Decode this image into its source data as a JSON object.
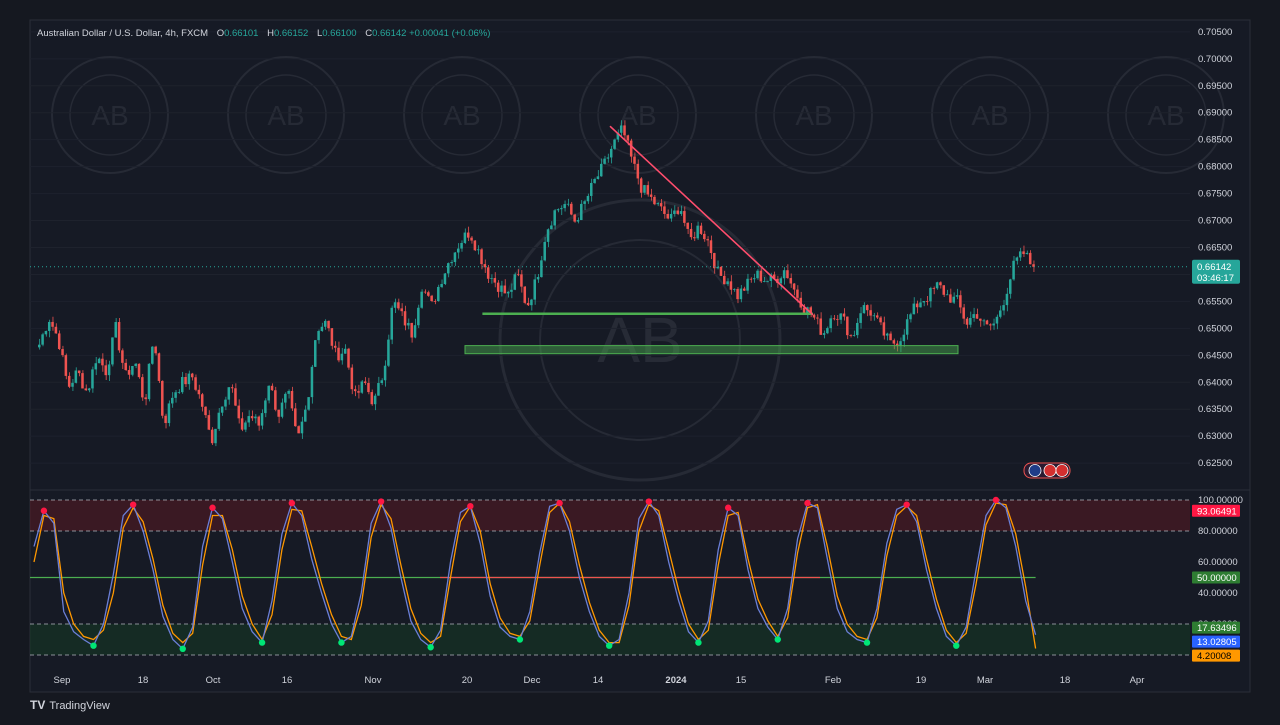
{
  "legend": {
    "symbol": "Australian Dollar / U.S. Dollar, 4h, FXCM",
    "o_label": "O",
    "o": "0.66101",
    "h_label": "H",
    "h": "0.66152",
    "l_label": "L",
    "l": "0.66100",
    "c_label": "C",
    "c": "0.66142",
    "change": "+0.00041 (+0.06%)"
  },
  "price_tag": {
    "value": "0.66142",
    "countdown": "03:46:17"
  },
  "watermark_text": "AB",
  "footer": {
    "brand": "TradingView",
    "logo": "TV"
  },
  "colors": {
    "up": "#26a69a",
    "down": "#ef5350",
    "line": "#ff4d6d",
    "zone": "#4caf50",
    "osc": "#6b7fd7",
    "signal": "#ff9800"
  },
  "chart_data": [
    {
      "type": "candlestick",
      "title": "Australian Dollar / U.S. Dollar, 4h, FXCM",
      "y_ticks": [
        "0.70500",
        "0.70000",
        "0.69500",
        "0.69000",
        "0.68500",
        "0.68000",
        "0.67500",
        "0.67000",
        "0.66500",
        "0.66000",
        "0.65500",
        "0.65000",
        "0.64500",
        "0.64000",
        "0.63500",
        "0.63000",
        "0.62500"
      ],
      "ylim": [
        0.6215,
        0.7072
      ],
      "x_labels": [
        "Sep",
        "18",
        "Oct",
        "16",
        "Nov",
        "20",
        "Dec",
        "14",
        "2024",
        "15",
        "Feb",
        "19",
        "Mar",
        "18",
        "Apr"
      ],
      "close_path": [
        0.647,
        0.652,
        0.648,
        0.639,
        0.642,
        0.638,
        0.645,
        0.642,
        0.65,
        0.641,
        0.644,
        0.636,
        0.649,
        0.632,
        0.638,
        0.64,
        0.641,
        0.636,
        0.629,
        0.636,
        0.64,
        0.631,
        0.634,
        0.632,
        0.64,
        0.634,
        0.638,
        0.629,
        0.636,
        0.65,
        0.651,
        0.645,
        0.646,
        0.637,
        0.64,
        0.636,
        0.642,
        0.655,
        0.652,
        0.649,
        0.658,
        0.654,
        0.659,
        0.663,
        0.666,
        0.668,
        0.664,
        0.66,
        0.658,
        0.656,
        0.66,
        0.654,
        0.659,
        0.668,
        0.672,
        0.673,
        0.67,
        0.673,
        0.677,
        0.68,
        0.684,
        0.687,
        0.681,
        0.676,
        0.674,
        0.672,
        0.67,
        0.673,
        0.666,
        0.669,
        0.666,
        0.66,
        0.659,
        0.656,
        0.658,
        0.66,
        0.659,
        0.659,
        0.661,
        0.657,
        0.654,
        0.652,
        0.649,
        0.653,
        0.652,
        0.648,
        0.654,
        0.653,
        0.65,
        0.647,
        0.648,
        0.652,
        0.655,
        0.656,
        0.658,
        0.656,
        0.655,
        0.651,
        0.653,
        0.65,
        0.651,
        0.656,
        0.662,
        0.664,
        0.661
      ],
      "last_price": 0.66142,
      "annotations": {
        "trendline": [
          [
            0.5,
            0.6875
          ],
          [
            0.675,
            0.6525
          ]
        ],
        "support_line_upper": {
          "x": [
            0.39,
            0.675
          ],
          "y": 0.6527
        },
        "support_zone": {
          "x": [
            0.375,
            0.8
          ],
          "y": [
            0.6453,
            0.6468
          ]
        }
      }
    },
    {
      "type": "line",
      "title": "",
      "y_ticks": [
        "100.00000",
        "80.00000",
        "60.00000",
        "40.00000",
        "20.00000"
      ],
      "ylim": [
        0,
        100
      ],
      "levels": [
        100,
        80,
        50,
        20,
        0
      ],
      "series": [
        {
          "values": [
            70,
            93.06,
            85,
            28,
            15,
            10,
            6,
            20,
            52,
            90,
            97,
            80,
            55,
            25,
            10,
            4,
            18,
            70,
            95,
            88,
            60,
            30,
            15,
            8,
            35,
            78,
            98,
            90,
            62,
            40,
            20,
            8,
            12,
            40,
            85,
            99,
            82,
            50,
            22,
            10,
            5,
            16,
            60,
            92,
            96,
            72,
            38,
            18,
            12,
            10,
            28,
            66,
            96,
            98,
            80,
            50,
            28,
            12,
            6,
            10,
            40,
            88,
            99,
            90,
            60,
            35,
            15,
            8,
            22,
            68,
            95,
            90,
            55,
            30,
            18,
            10,
            30,
            75,
            98,
            95,
            62,
            30,
            15,
            10,
            8,
            30,
            72,
            94,
            97,
            86,
            55,
            30,
            12,
            6,
            18,
            55,
            90,
            100,
            95,
            70,
            35,
            13.03
          ]
        },
        {
          "values": [
            60,
            90,
            88,
            40,
            20,
            12,
            10,
            16,
            40,
            82,
            95,
            86,
            62,
            32,
            14,
            8,
            14,
            58,
            90,
            90,
            68,
            38,
            20,
            10,
            26,
            68,
            94,
            93,
            70,
            46,
            26,
            12,
            10,
            32,
            76,
            97,
            88,
            58,
            30,
            14,
            8,
            12,
            50,
            86,
            96,
            80,
            46,
            24,
            14,
            12,
            22,
            58,
            92,
            98,
            86,
            58,
            34,
            16,
            8,
            8,
            32,
            80,
            97,
            93,
            68,
            42,
            20,
            10,
            16,
            58,
            90,
            92,
            62,
            36,
            22,
            12,
            24,
            66,
            95,
            97,
            70,
            38,
            20,
            12,
            10,
            24,
            64,
            90,
            96,
            90,
            62,
            36,
            16,
            8,
            14,
            46,
            84,
            98,
            97,
            78,
            44,
            4.2
          ]
        }
      ],
      "markers": {
        "high": "red dots on peaks",
        "low": "green dots on troughs"
      },
      "price_labels": [
        "93.06491",
        "50.00000",
        "17.63496",
        "13.02805",
        "4.20008"
      ]
    }
  ]
}
